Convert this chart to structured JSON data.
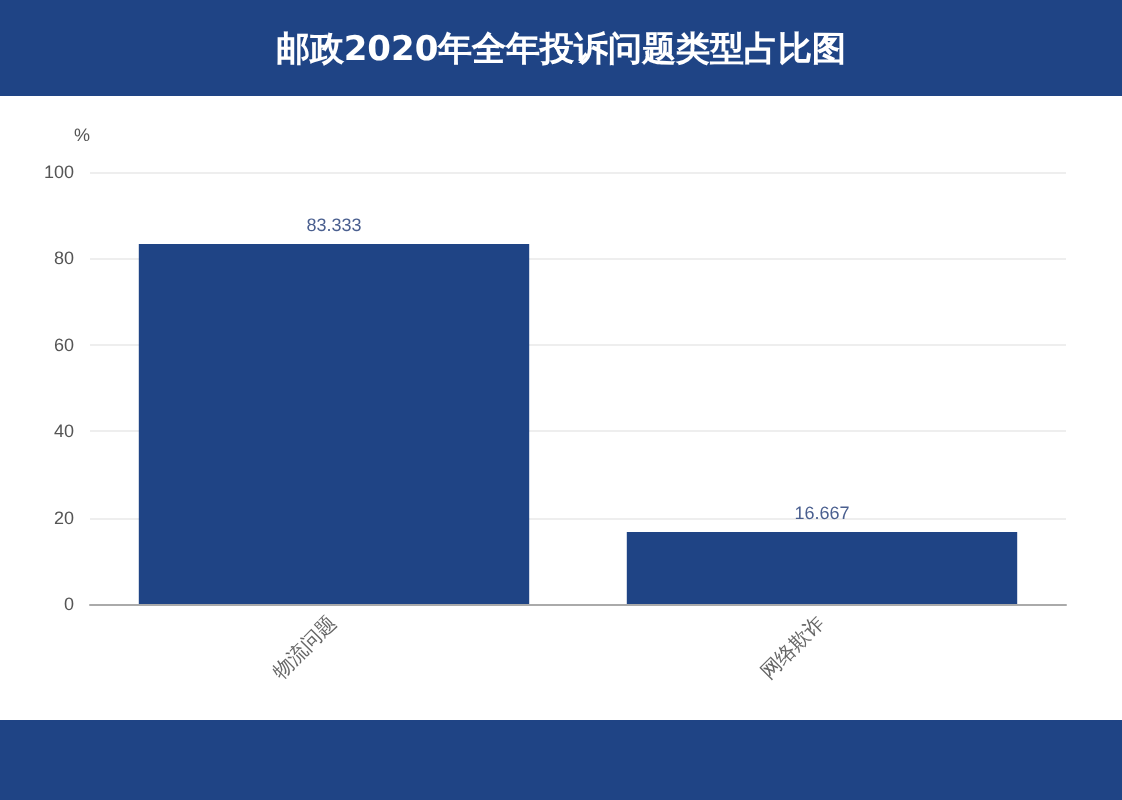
{
  "chart_data": {
    "type": "bar",
    "title": "邮政2020年全年投诉问题类型占比图",
    "ylabel": "%",
    "categories": [
      "物流问题",
      "网络欺诈"
    ],
    "values": [
      83.333,
      16.667
    ],
    "color": "#1f4485",
    "data_labels": true,
    "ylim": [
      0,
      100
    ],
    "yticks": [
      0,
      20,
      40,
      60,
      80,
      100
    ],
    "grid": "y"
  }
}
